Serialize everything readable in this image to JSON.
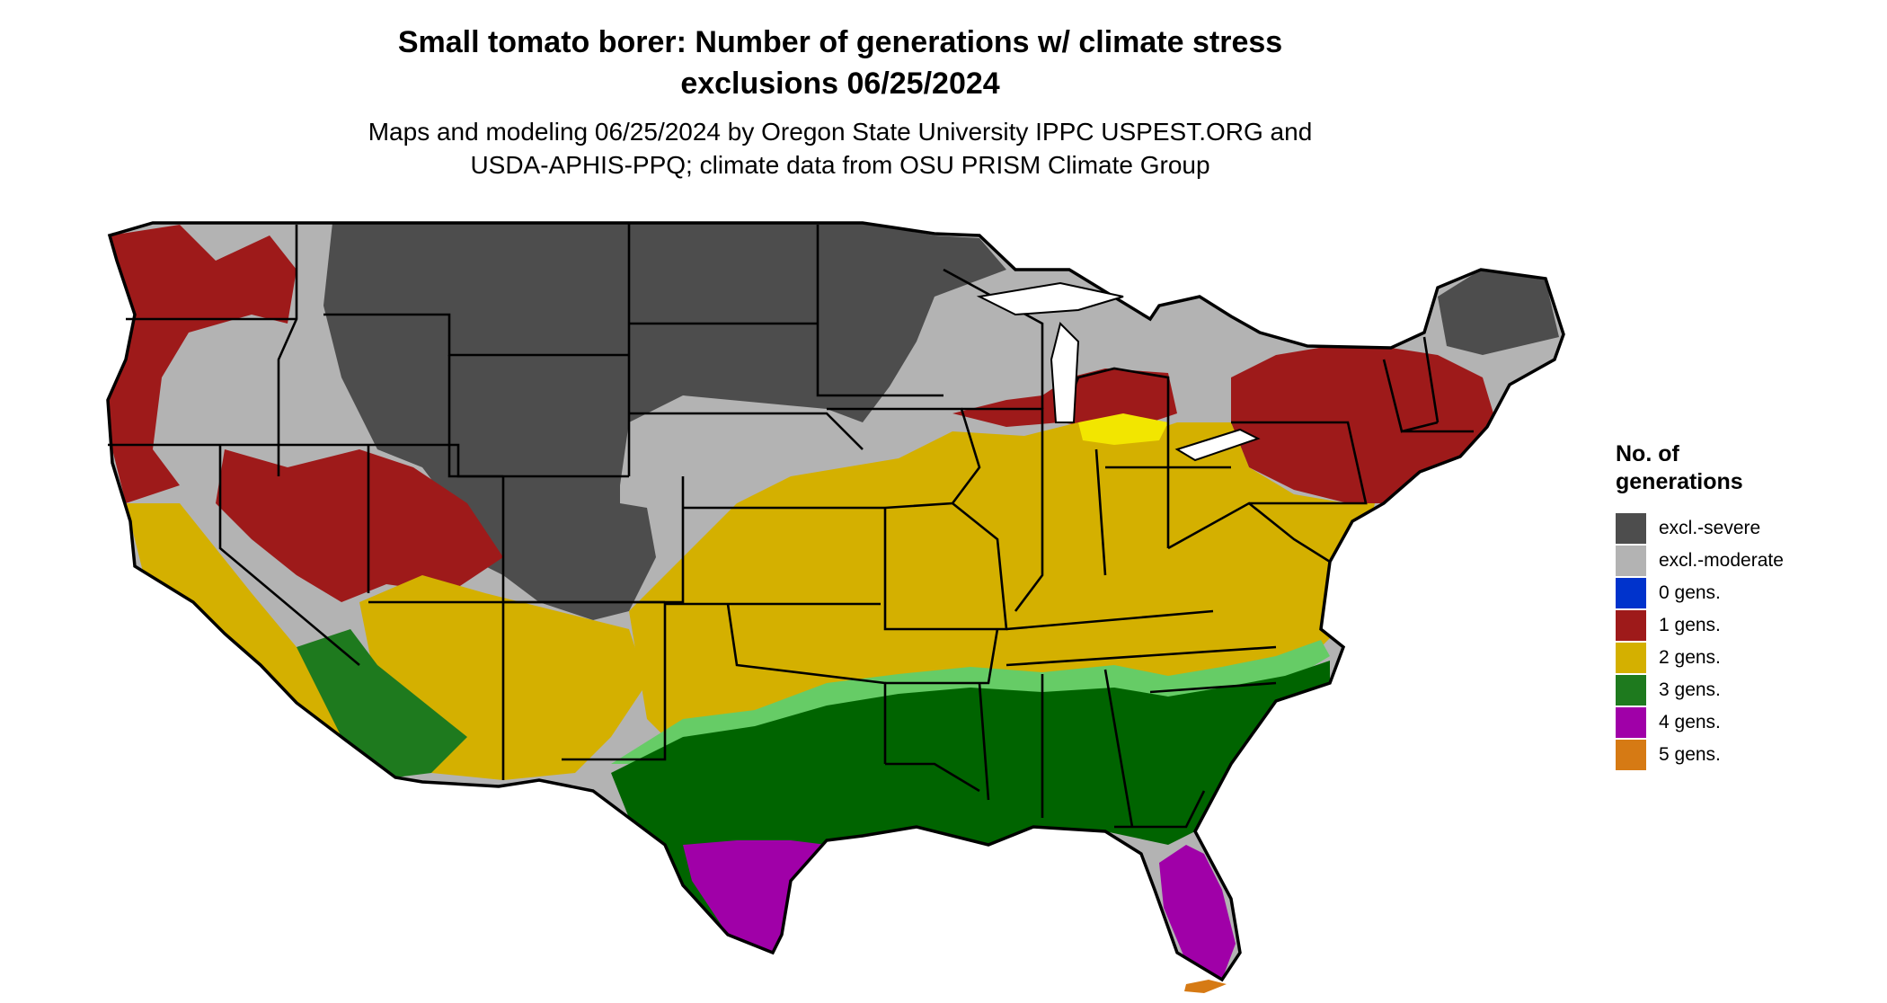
{
  "title_line1": "Small tomato borer: Number of generations w/ climate stress",
  "title_line2": "exclusions 06/25/2024",
  "subtitle_line1": "Maps and modeling 06/25/2024 by Oregon State University IPPC USPEST.ORG and",
  "subtitle_line2": "USDA-APHIS-PPQ; climate data from OSU PRISM Climate Group",
  "legend": {
    "title_line1": "No. of",
    "title_line2": "generations",
    "items": [
      {
        "label": "excl.-severe",
        "color": "#4d4d4d"
      },
      {
        "label": "excl.-moderate",
        "color": "#b3b3b3"
      },
      {
        "label": "0 gens.",
        "color": "#0033cc"
      },
      {
        "label": "1 gens.",
        "color": "#9e1a1a"
      },
      {
        "label": "2 gens.",
        "color": "#d4b000"
      },
      {
        "label": "3 gens.",
        "color": "#1e7a1e"
      },
      {
        "label": "4 gens.",
        "color": "#a000a8"
      },
      {
        "label": "5 gens.",
        "color": "#d67a14"
      }
    ]
  },
  "map_colors": {
    "outline": "#000000",
    "light_green_fringe": "#66cc66",
    "dark_green": "#006400",
    "yellow_bright": "#f2e600"
  }
}
